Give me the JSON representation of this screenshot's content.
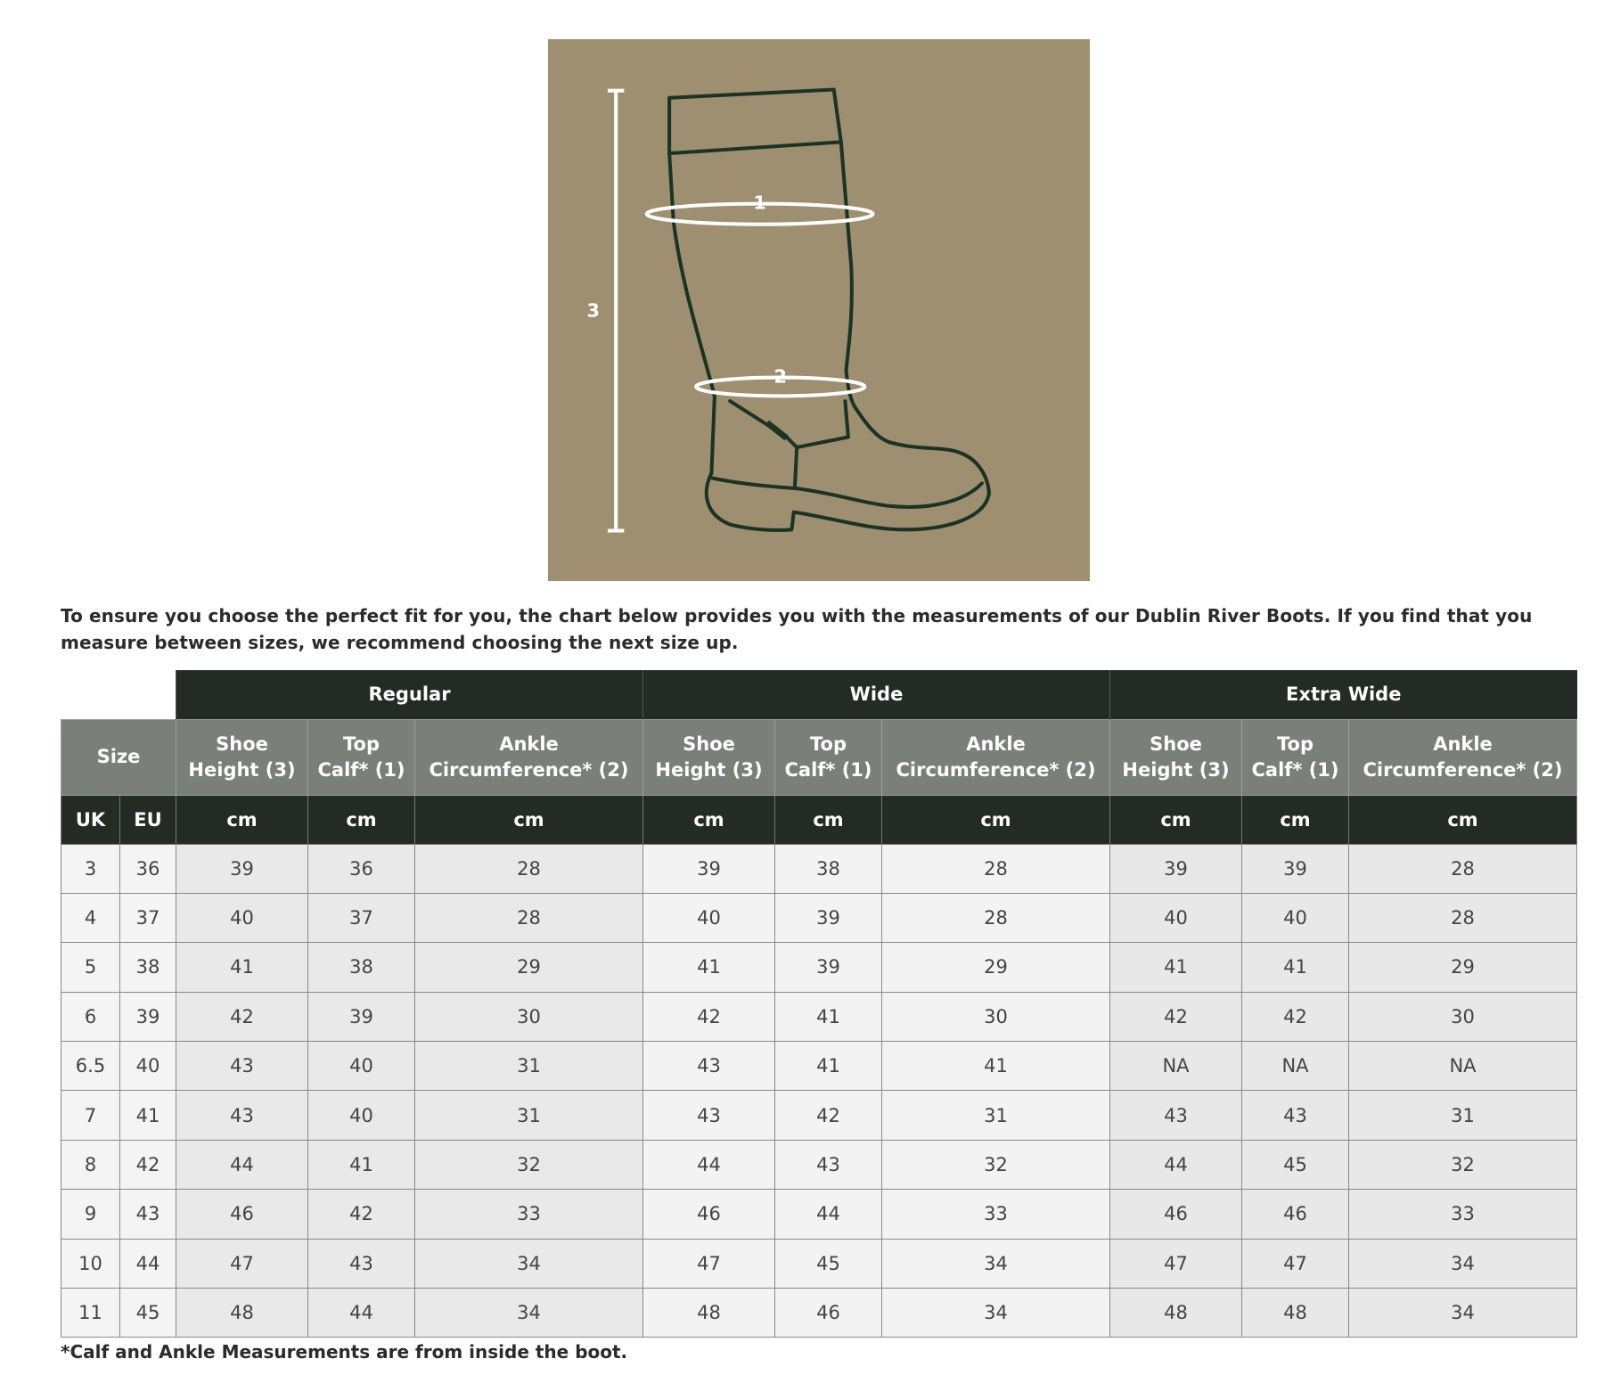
{
  "diagram": {
    "labels": [
      "1",
      "2",
      "3"
    ],
    "background_color": "#9f8f71",
    "outline_color": "#1a3324"
  },
  "intro_text": "To ensure you choose the perfect fit for you, the chart below provides you with the measurements of our Dublin River Boots. If you find that you measure between sizes, we recommend choosing the next size up.",
  "table": {
    "groups": [
      "Regular",
      "Wide",
      "Extra Wide"
    ],
    "size_header": "Size",
    "measure_headers": [
      [
        "Shoe",
        "Height (3)"
      ],
      [
        "Top",
        "Calf* (1)"
      ],
      [
        "Ankle",
        "Circumference* (2)"
      ]
    ],
    "units": [
      "UK",
      "EU",
      "cm",
      "cm",
      "cm",
      "cm",
      "cm",
      "cm",
      "cm",
      "cm",
      "cm"
    ],
    "rows": [
      [
        "3",
        "36",
        "39",
        "36",
        "28",
        "39",
        "38",
        "28",
        "39",
        "39",
        "28"
      ],
      [
        "4",
        "37",
        "40",
        "37",
        "28",
        "40",
        "39",
        "28",
        "40",
        "40",
        "28"
      ],
      [
        "5",
        "38",
        "41",
        "38",
        "29",
        "41",
        "39",
        "29",
        "41",
        "41",
        "29"
      ],
      [
        "6",
        "39",
        "42",
        "39",
        "30",
        "42",
        "41",
        "30",
        "42",
        "42",
        "30"
      ],
      [
        "6.5",
        "40",
        "43",
        "40",
        "31",
        "43",
        "41",
        "41",
        "NA",
        "NA",
        "NA"
      ],
      [
        "7",
        "41",
        "43",
        "40",
        "31",
        "43",
        "42",
        "31",
        "43",
        "43",
        "31"
      ],
      [
        "8",
        "42",
        "44",
        "41",
        "32",
        "44",
        "43",
        "32",
        "44",
        "45",
        "32"
      ],
      [
        "9",
        "43",
        "46",
        "42",
        "33",
        "46",
        "44",
        "33",
        "46",
        "46",
        "33"
      ],
      [
        "10",
        "44",
        "47",
        "43",
        "34",
        "47",
        "45",
        "34",
        "47",
        "47",
        "34"
      ],
      [
        "11",
        "45",
        "48",
        "44",
        "34",
        "48",
        "46",
        "34",
        "48",
        "48",
        "34"
      ]
    ],
    "colors": {
      "header_dark": "#232b24",
      "header_gray": "#7a7f79"
    }
  },
  "footnote": "*Calf and Ankle Measurements are from inside the boot."
}
